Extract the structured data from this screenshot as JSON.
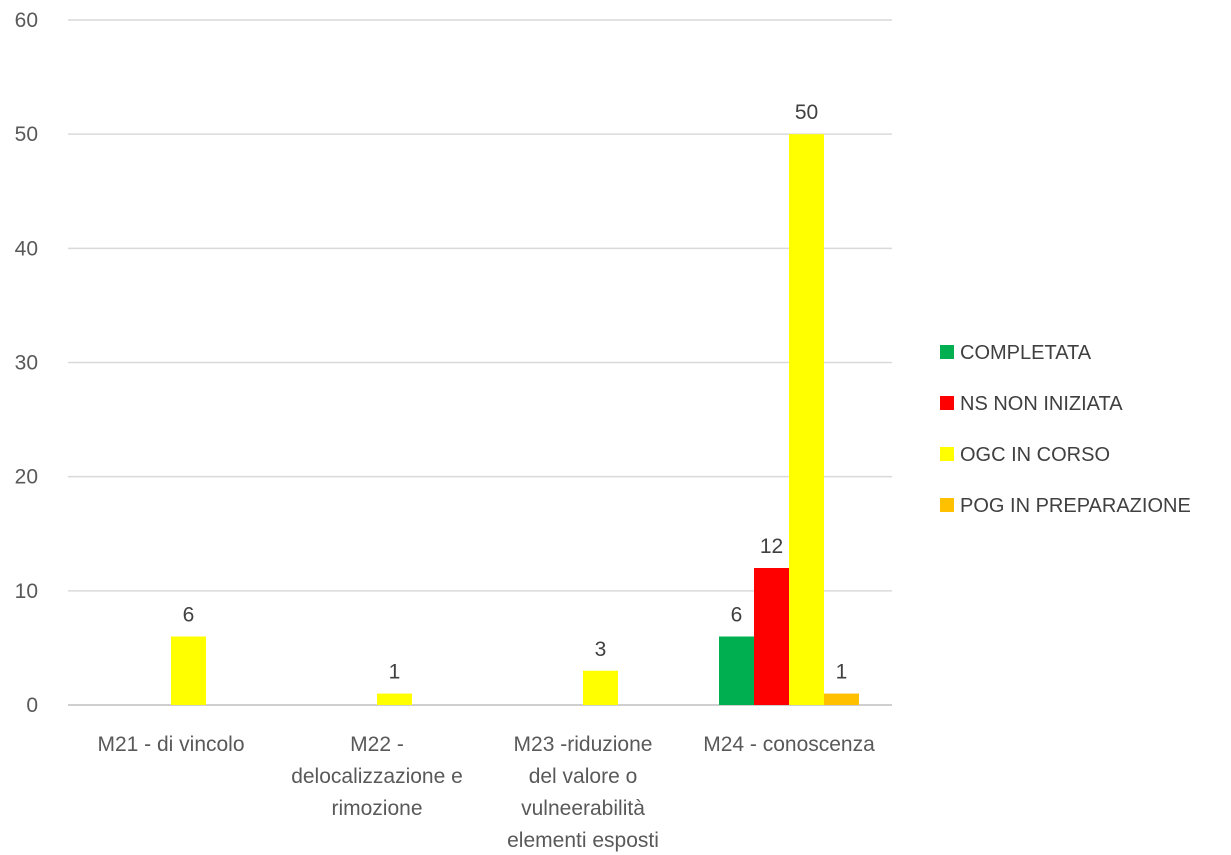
{
  "chart_data": {
    "type": "bar",
    "title": "",
    "xlabel": "",
    "ylabel": "",
    "ylim": [
      0,
      60
    ],
    "yticks": [
      0,
      10,
      20,
      30,
      40,
      50,
      60
    ],
    "grid": true,
    "legend_position": "right",
    "categories": [
      [
        "M21 - di vincolo"
      ],
      [
        "M22 -",
        "delocalizzazione e",
        "rimozione"
      ],
      [
        "M23 -riduzione",
        "del valore o",
        "vulneerabilità",
        "elementi esposti"
      ],
      [
        "M24 - conoscenza"
      ]
    ],
    "series": [
      {
        "name": "COMPLETATA",
        "color": "#00b050",
        "values": [
          0,
          0,
          0,
          6
        ]
      },
      {
        "name": "NS NON INIZIATA",
        "color": "#ff0000",
        "values": [
          0,
          0,
          0,
          12
        ]
      },
      {
        "name": "OGC IN CORSO",
        "color": "#ffff00",
        "values": [
          6,
          1,
          3,
          50
        ]
      },
      {
        "name": "POG IN PREPARAZIONE",
        "color": "#ffc000",
        "values": [
          0,
          0,
          0,
          1
        ]
      }
    ],
    "colors": {
      "grid": "#d9d9d9",
      "axis": "#bfbfbf",
      "text": "#595959"
    }
  }
}
